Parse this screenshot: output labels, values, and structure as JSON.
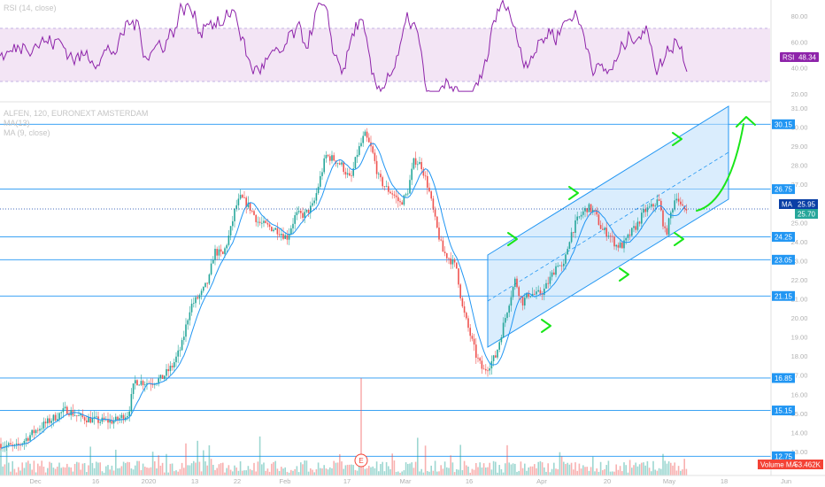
{
  "legend": {
    "rsi": "RSI (14, close)",
    "main": "ALFEN, 120, EURONEXT AMSTERDAM",
    "sub": "MA(13)",
    "ma": "MA (9, close)"
  },
  "chart_data": [
    {
      "type": "line",
      "title": "RSI (14, close)",
      "ylim": [
        15,
        95
      ],
      "y_ticks": [
        "80.00",
        "60.00",
        "40.00",
        "20.00"
      ],
      "band": [
        30,
        70
      ],
      "last_value_label": "RSI",
      "last_value": "48.34",
      "series": [
        {
          "name": "RSI",
          "color": "#9c27b0"
        }
      ]
    },
    {
      "type": "candlestick",
      "title": "ALFEN, 120, EURONEXT AMSTERDAM",
      "ylim": [
        12,
        31.2
      ],
      "y_ticks": [
        "31.00",
        "30.00",
        "29.00",
        "28.00",
        "27.00",
        "26.00",
        "25.00",
        "24.00",
        "23.00",
        "22.00",
        "21.00",
        "20.00",
        "19.00",
        "18.00",
        "17.00",
        "16.00",
        "15.00",
        "14.00",
        "13.00"
      ],
      "x_ticks": [
        "Dec",
        "16",
        "2020",
        "13",
        "22",
        "Feb",
        "17",
        "Mar",
        "16",
        "Apr",
        "20",
        "May",
        "18",
        "Jun"
      ],
      "horizontal_levels": [
        {
          "value": 30.15,
          "label": "30.15"
        },
        {
          "value": 26.75,
          "label": "26.75"
        },
        {
          "value": 24.25,
          "label": "24.25"
        },
        {
          "value": 23.05,
          "label": "23.05"
        },
        {
          "value": 21.15,
          "label": "21.15"
        },
        {
          "value": 16.85,
          "label": "16.85"
        },
        {
          "value": 15.15,
          "label": "15.15"
        },
        {
          "value": 12.75,
          "label": "12.75"
        }
      ],
      "markers": [
        {
          "label": "MA",
          "value": "25.95",
          "color": "#0a3fa6"
        },
        {
          "label": "",
          "value": "25.70",
          "color": "#26a69a"
        }
      ],
      "earnings_marker": "E",
      "volume_label": "Volume MA",
      "volume_value": "53.462K",
      "anchors": [
        [
          0,
          13.4
        ],
        [
          18,
          13.2
        ],
        [
          40,
          14.1
        ],
        [
          62,
          14.8
        ],
        [
          75,
          15.2
        ],
        [
          90,
          14.8
        ],
        [
          112,
          14.6
        ],
        [
          130,
          14.6
        ],
        [
          145,
          15.0
        ],
        [
          152,
          16.7
        ],
        [
          168,
          16.6
        ],
        [
          182,
          16.8
        ],
        [
          195,
          17.5
        ],
        [
          205,
          18.5
        ],
        [
          215,
          20.6
        ],
        [
          228,
          21.3
        ],
        [
          236,
          22.0
        ],
        [
          242,
          23.5
        ],
        [
          252,
          23.3
        ],
        [
          260,
          24.5
        ],
        [
          266,
          25.8
        ],
        [
          272,
          26.3
        ],
        [
          282,
          25.8
        ],
        [
          292,
          25.0
        ],
        [
          302,
          24.8
        ],
        [
          314,
          24.6
        ],
        [
          324,
          24.2
        ],
        [
          334,
          25.4
        ],
        [
          344,
          25.4
        ],
        [
          354,
          25.9
        ],
        [
          360,
          27.0
        ],
        [
          368,
          28.5
        ],
        [
          378,
          28.3
        ],
        [
          386,
          28.0
        ],
        [
          396,
          27.2
        ],
        [
          404,
          28.7
        ],
        [
          412,
          29.6
        ],
        [
          420,
          28.8
        ],
        [
          428,
          27.3
        ],
        [
          436,
          26.8
        ],
        [
          444,
          26.5
        ],
        [
          452,
          26.0
        ],
        [
          460,
          26.5
        ],
        [
          468,
          28.3
        ],
        [
          476,
          28.0
        ],
        [
          484,
          26.8
        ],
        [
          492,
          25.0
        ],
        [
          500,
          23.5
        ],
        [
          508,
          23.1
        ],
        [
          516,
          22.6
        ],
        [
          522,
          20.6
        ],
        [
          530,
          19.3
        ],
        [
          538,
          18.0
        ],
        [
          546,
          17.2
        ],
        [
          552,
          17.5
        ],
        [
          560,
          18.0
        ],
        [
          568,
          19.5
        ],
        [
          576,
          21.0
        ],
        [
          582,
          22.0
        ],
        [
          590,
          20.8
        ],
        [
          598,
          21.3
        ],
        [
          606,
          21.2
        ],
        [
          614,
          21.4
        ],
        [
          622,
          22.1
        ],
        [
          630,
          22.9
        ],
        [
          636,
          22.5
        ],
        [
          644,
          24.3
        ],
        [
          652,
          25.1
        ],
        [
          658,
          25.5
        ],
        [
          664,
          25.8
        ],
        [
          672,
          25.5
        ],
        [
          680,
          24.6
        ],
        [
          688,
          24.4
        ],
        [
          696,
          23.8
        ],
        [
          704,
          23.8
        ],
        [
          712,
          24.4
        ],
        [
          720,
          24.9
        ],
        [
          728,
          25.6
        ],
        [
          736,
          25.8
        ],
        [
          744,
          26.2
        ],
        [
          752,
          24.3
        ],
        [
          758,
          25.5
        ],
        [
          764,
          26.5
        ],
        [
          770,
          25.7
        ],
        [
          776,
          25.7
        ]
      ],
      "annotations": {
        "channel": "rising parallel channel",
        "projection": "upward arrow"
      }
    }
  ]
}
